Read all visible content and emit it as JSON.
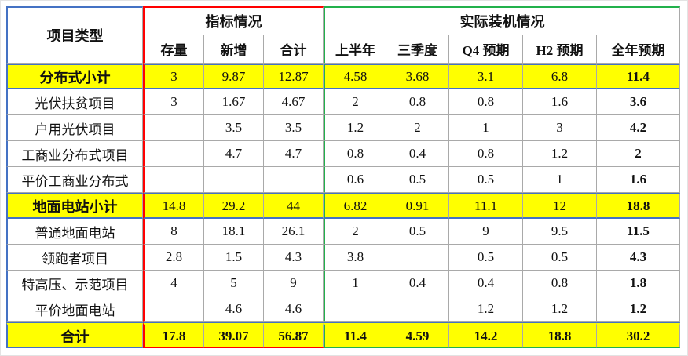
{
  "table": {
    "header": {
      "project_type": "项目类型",
      "group1": "指标情况",
      "group2": "实际装机情况",
      "cols1": [
        "存量",
        "新增",
        "合计"
      ],
      "cols2": [
        "上半年",
        "三季度",
        "Q4 预期",
        "H2 预期",
        "全年预期"
      ]
    },
    "rows": [
      {
        "label": "分布式小计",
        "type": "subtotal",
        "values": [
          "3",
          "9.87",
          "12.87",
          "4.58",
          "3.68",
          "3.1",
          "6.8",
          "11.4"
        ]
      },
      {
        "label": "光伏扶贫项目",
        "type": "normal",
        "values": [
          "3",
          "1.67",
          "4.67",
          "2",
          "0.8",
          "0.8",
          "1.6",
          "3.6"
        ]
      },
      {
        "label": "户用光伏项目",
        "type": "normal",
        "values": [
          "",
          "3.5",
          "3.5",
          "1.2",
          "2",
          "1",
          "3",
          "4.2"
        ]
      },
      {
        "label": "工商业分布式项目",
        "type": "normal",
        "values": [
          "",
          "4.7",
          "4.7",
          "0.8",
          "0.4",
          "0.8",
          "1.2",
          "2"
        ]
      },
      {
        "label": "平价工商业分布式",
        "type": "normal",
        "values": [
          "",
          "",
          "",
          "0.6",
          "0.5",
          "0.5",
          "1",
          "1.6"
        ]
      },
      {
        "label": "地面电站小计",
        "type": "subtotal",
        "values": [
          "14.8",
          "29.2",
          "44",
          "6.82",
          "0.91",
          "11.1",
          "12",
          "18.8"
        ]
      },
      {
        "label": "普通地面电站",
        "type": "normal",
        "values": [
          "8",
          "18.1",
          "26.1",
          "2",
          "0.5",
          "9",
          "9.5",
          "11.5"
        ]
      },
      {
        "label": "领跑者项目",
        "type": "normal",
        "values": [
          "2.8",
          "1.5",
          "4.3",
          "3.8",
          "",
          "0.5",
          "0.5",
          "4.3"
        ]
      },
      {
        "label": "特高压、示范项目",
        "type": "normal",
        "values": [
          "4",
          "5",
          "9",
          "1",
          "0.4",
          "0.4",
          "0.8",
          "1.8"
        ]
      },
      {
        "label": "平价地面电站",
        "type": "normal",
        "values": [
          "",
          "4.6",
          "4.6",
          "",
          "",
          "1.2",
          "1.2",
          "1.2"
        ]
      },
      {
        "label": "合计",
        "type": "total",
        "values": [
          "17.8",
          "39.07",
          "56.87",
          "11.4",
          "4.59",
          "14.2",
          "18.8",
          "30.2"
        ]
      }
    ],
    "colors": {
      "subtotal_bg": "#ffff00",
      "label_box_border": "#4472c4",
      "indicator_box_border": "#ff0000",
      "actual_box_border": "#22b14c",
      "forecast_text": "#ff0000",
      "grid_line": "#a9a9a9"
    }
  }
}
